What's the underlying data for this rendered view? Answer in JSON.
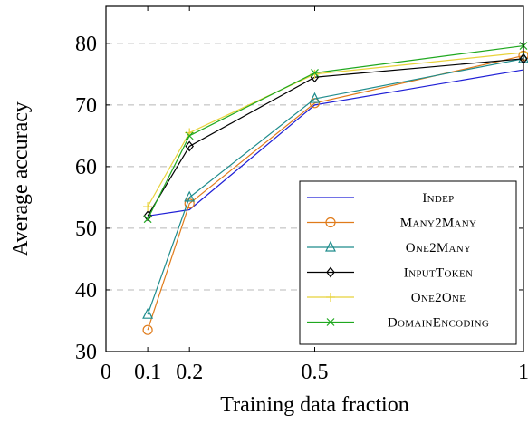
{
  "chart_data": {
    "type": "line",
    "title": "",
    "xlabel": "Training data fraction",
    "ylabel": "Average accuracy",
    "xlim": [
      0,
      1
    ],
    "ylim": [
      30,
      86
    ],
    "xticks": [
      0,
      0.1,
      0.2,
      0.5,
      1
    ],
    "xtick_labels": [
      "0",
      "0.1",
      "0.2",
      "0.5",
      "1"
    ],
    "yticks": [
      30,
      40,
      50,
      60,
      70,
      80
    ],
    "ytick_labels": [
      "30",
      "40",
      "50",
      "60",
      "70",
      "80"
    ],
    "grid": "horizontal-dashed",
    "legend_position": "bottom-right",
    "x": [
      0.1,
      0.2,
      0.5,
      1
    ],
    "series": [
      {
        "name": "Indep",
        "color": "#1f1fd6",
        "marker": "none",
        "values": [
          52.0,
          53.0,
          70.0,
          75.7
        ]
      },
      {
        "name": "Many2Many",
        "color": "#e07b1a",
        "marker": "circle",
        "values": [
          33.5,
          54.0,
          70.3,
          78.0
        ]
      },
      {
        "name": "One2Many",
        "color": "#1e8c8c",
        "marker": "triangle",
        "values": [
          36.0,
          55.0,
          71.0,
          77.5
        ]
      },
      {
        "name": "InputToken",
        "color": "#000000",
        "marker": "diamond",
        "values": [
          52.0,
          63.3,
          74.5,
          77.5
        ]
      },
      {
        "name": "One2One",
        "color": "#e8d23a",
        "marker": "plus",
        "values": [
          53.5,
          65.5,
          75.0,
          78.5
        ]
      },
      {
        "name": "DomainEncoding",
        "color": "#1fa81f",
        "marker": "cross",
        "values": [
          51.5,
          65.0,
          75.2,
          79.6
        ]
      }
    ]
  }
}
